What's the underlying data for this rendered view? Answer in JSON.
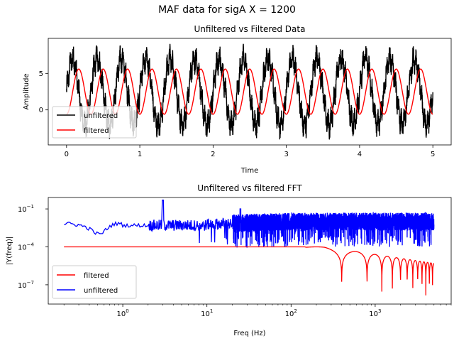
{
  "figure": {
    "suptitle": "MAF data for sigA  X = 1200"
  },
  "chart_data": [
    {
      "type": "line",
      "title": "Unfiltered vs Filtered Data",
      "xlabel": "Time",
      "ylabel": "Amplitude",
      "xlim": [
        -0.25,
        5.25
      ],
      "ylim": [
        -4.8,
        9.8
      ],
      "xticks": [
        0,
        1,
        2,
        3,
        4,
        5
      ],
      "xtick_labels": [
        "0",
        "1",
        "2",
        "3",
        "4",
        "5"
      ],
      "yticks": [
        0,
        5
      ],
      "ytick_labels": [
        "0",
        "5"
      ],
      "legend_position": "lower-left",
      "grid": false,
      "series": [
        {
          "name": "unfiltered",
          "color": "#000000",
          "model": "oscillating signal, ~3 Hz fundamental plus a 25 Hz component and noise",
          "x_range": [
            0,
            5
          ],
          "mean": 2.5,
          "amplitude_3hz": 4.5,
          "amplitude_25hz": 1.0,
          "approx_min": -3.8,
          "approx_max": 9.2
        },
        {
          "name": "filtered",
          "color": "#ff0000",
          "model": "sinusoid, period ~0.333 (3 Hz)",
          "x_range": [
            0,
            5
          ],
          "mean": 2.5,
          "amplitude": 3.1,
          "phase_peak_x": 0.167,
          "approx_min": -0.6,
          "approx_max": 5.6
        }
      ]
    },
    {
      "type": "line",
      "title": "Unfiltered vs filtered FFT",
      "xlabel": "Freq (Hz)",
      "ylabel": "|Y(freq)|",
      "xscale": "log",
      "yscale": "log",
      "xlim": [
        0.13,
        8000
      ],
      "ylim": [
        3e-09,
        0.8
      ],
      "xticks": [
        1,
        10,
        100,
        1000
      ],
      "xtick_labels": [
        "10^0",
        "10^1",
        "10^2",
        "10^3"
      ],
      "yticks": [
        1e-07,
        0.0001,
        0.1
      ],
      "ytick_labels": [
        "10^-7",
        "10^-4",
        "10^-1"
      ],
      "legend_position": "lower-left",
      "grid": false,
      "series": [
        {
          "name": "filtered",
          "color": "#ff0000",
          "model": "flat near 1e-4 up to ~200 Hz, then sinc-like lobes with nulls down to ~1e-8",
          "points": [
            [
              0.2,
              0.0001
            ],
            [
              1,
              0.0001
            ],
            [
              10,
              0.0001
            ],
            [
              100,
              9.8e-05
            ],
            [
              200,
              8e-05
            ],
            [
              300,
              3e-05
            ],
            [
              330,
              1e-08
            ],
            [
              380,
              1e-05
            ],
            [
              450,
              1e-08
            ],
            [
              600,
              1.2e-05
            ],
            [
              800,
              2e-06
            ],
            [
              900,
              1e-08
            ],
            [
              1000,
              6e-06
            ],
            [
              1200,
              1e-08
            ],
            [
              1500,
              4e-06
            ],
            [
              1800,
              1e-08
            ],
            [
              2200,
              2e-06
            ],
            [
              2600,
              1e-08
            ],
            [
              3200,
              1e-06
            ],
            [
              3700,
              1e-08
            ],
            [
              4200,
              6e-07
            ],
            [
              4600,
              4e-09
            ],
            [
              5000,
              5e-07
            ]
          ]
        },
        {
          "name": "unfiltered",
          "color": "#0000ff",
          "model": "noise floor ~5e-3 to 1e-2 with peaks at 3 Hz (~0.5) and 25 Hz (~0.1), dense noisy band to 5000 Hz",
          "points": [
            [
              0.2,
              0.004
            ],
            [
              0.4,
              0.0045
            ],
            [
              0.6,
              0.007
            ],
            [
              1,
              0.005
            ],
            [
              1.2,
              0.009
            ],
            [
              2,
              0.005
            ],
            [
              2.8,
              0.01
            ],
            [
              3,
              0.5
            ],
            [
              3.2,
              0.002
            ],
            [
              10,
              0.005
            ],
            [
              24,
              0.006
            ],
            [
              25,
              0.1
            ],
            [
              26,
              0.005
            ],
            [
              100,
              0.005
            ],
            [
              1000,
              0.01
            ],
            [
              5000,
              0.01
            ]
          ],
          "peaks": [
            {
              "x": 3,
              "y": 0.5
            },
            {
              "x": 25,
              "y": 0.1
            }
          ]
        }
      ]
    }
  ]
}
